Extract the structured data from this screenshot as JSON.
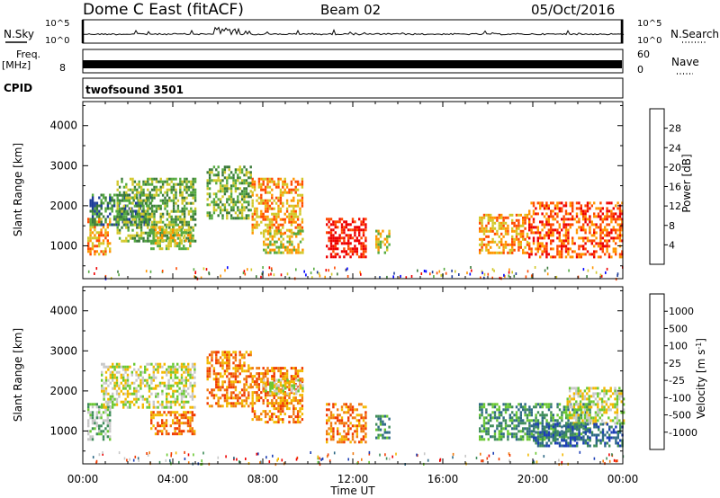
{
  "header": {
    "station": "Dome C East (fitACF)",
    "beam": "Beam 02",
    "date": "05/Oct/2016"
  },
  "strips": {
    "nsky_label": "N.Sky",
    "nsky_ticks": [
      "10^5",
      "10^0"
    ],
    "nsearch_label": "N.Search",
    "nsearch_ticks": [
      "10^5",
      "10^0"
    ],
    "freq_label": "Freq.",
    "freq_unit": "[MHz]",
    "freq_ticks": [
      "8"
    ],
    "nave_label": "Nave",
    "nave_ticks": [
      "60",
      "0"
    ],
    "cpid_label": "CPID",
    "cpid_value": "twofsound 3501"
  },
  "chart_data": [
    {
      "type": "heatmap",
      "name": "power-panel",
      "xlabel": "",
      "ylabel": "Slant Range [km]",
      "x_ticks": [
        "00:00",
        "04:00",
        "08:00",
        "12:00",
        "16:00",
        "20:00",
        "00:00"
      ],
      "xlim_hours": [
        0,
        24
      ],
      "ylim": [
        180,
        4600
      ],
      "y_ticks": [
        1000,
        2000,
        3000,
        4000
      ],
      "colorbar": {
        "label": "Power [dB]",
        "ticks": [
          "4",
          "8",
          "12",
          "16",
          "20",
          "24",
          "28"
        ],
        "colors": [
          "#0000ff",
          "#1e3d99",
          "#3a7a3a",
          "#55aa40",
          "#d2c82a",
          "#ff9600",
          "#ff4a00",
          "#ee0000"
        ]
      },
      "echo_regions": [
        {
          "t0": 0.2,
          "t1": 1.2,
          "r0": 800,
          "r1": 1700,
          "level": 5
        },
        {
          "t0": 0.3,
          "t1": 3.0,
          "r0": 1500,
          "r1": 2300,
          "level": 2
        },
        {
          "t0": 1.5,
          "t1": 5.0,
          "r0": 1100,
          "r1": 2700,
          "level": 3
        },
        {
          "t0": 3.0,
          "t1": 4.8,
          "r0": 900,
          "r1": 1500,
          "level": 4
        },
        {
          "t0": 5.5,
          "t1": 7.5,
          "r0": 1700,
          "r1": 3000,
          "level": 3
        },
        {
          "t0": 7.5,
          "t1": 9.8,
          "r0": 1300,
          "r1": 2700,
          "level": 5
        },
        {
          "t0": 8.0,
          "t1": 9.8,
          "r0": 800,
          "r1": 1400,
          "level": 4
        },
        {
          "t0": 10.8,
          "t1": 12.6,
          "r0": 700,
          "r1": 1700,
          "level": 7
        },
        {
          "t0": 13.0,
          "t1": 13.6,
          "r0": 800,
          "r1": 1400,
          "level": 4
        },
        {
          "t0": 17.6,
          "t1": 19.8,
          "r0": 800,
          "r1": 1800,
          "level": 5
        },
        {
          "t0": 19.8,
          "t1": 24.0,
          "r0": 700,
          "r1": 2100,
          "level": 6
        }
      ]
    },
    {
      "type": "heatmap",
      "name": "velocity-panel",
      "xlabel": "Time UT",
      "ylabel": "Slant Range [km]",
      "x_ticks": [
        "00:00",
        "04:00",
        "08:00",
        "12:00",
        "16:00",
        "20:00",
        "00:00"
      ],
      "xlim_hours": [
        0,
        24
      ],
      "ylim": [
        180,
        4600
      ],
      "y_ticks": [
        1000,
        2000,
        3000,
        4000
      ],
      "colorbar": {
        "label": "Velocity [m s^-1]",
        "ticks": [
          "1000",
          "500",
          "100",
          "25",
          "-25",
          "-100",
          "-500",
          "-1000"
        ],
        "colors": [
          "#1d3fb5",
          "#2f6a86",
          "#3f8d5a",
          "#6ac832",
          "#c8c8c8",
          "#f3b800",
          "#f07a10",
          "#f03b00",
          "#ee0000"
        ]
      },
      "echo_regions": [
        {
          "t0": 0.2,
          "t1": 1.2,
          "r0": 800,
          "r1": 1700,
          "level": 3
        },
        {
          "t0": 0.8,
          "t1": 5.0,
          "r0": 1600,
          "r1": 2700,
          "level": 4
        },
        {
          "t0": 3.0,
          "t1": 5.0,
          "r0": 900,
          "r1": 1500,
          "level": 6
        },
        {
          "t0": 5.5,
          "t1": 7.5,
          "r0": 1600,
          "r1": 3000,
          "level": 6
        },
        {
          "t0": 7.5,
          "t1": 9.8,
          "r0": 1200,
          "r1": 2600,
          "level": 6
        },
        {
          "t0": 8.0,
          "t1": 9.8,
          "r0": 1900,
          "r1": 2300,
          "level": 4
        },
        {
          "t0": 10.8,
          "t1": 12.6,
          "r0": 700,
          "r1": 1700,
          "level": 6
        },
        {
          "t0": 13.0,
          "t1": 13.6,
          "r0": 800,
          "r1": 1400,
          "level": 2
        },
        {
          "t0": 17.6,
          "t1": 22.5,
          "r0": 800,
          "r1": 1700,
          "level": 2
        },
        {
          "t0": 21.5,
          "t1": 24.0,
          "r0": 1200,
          "r1": 2100,
          "level": 4
        },
        {
          "t0": 20.0,
          "t1": 24.0,
          "r0": 600,
          "r1": 1200,
          "level": 1
        }
      ]
    }
  ]
}
